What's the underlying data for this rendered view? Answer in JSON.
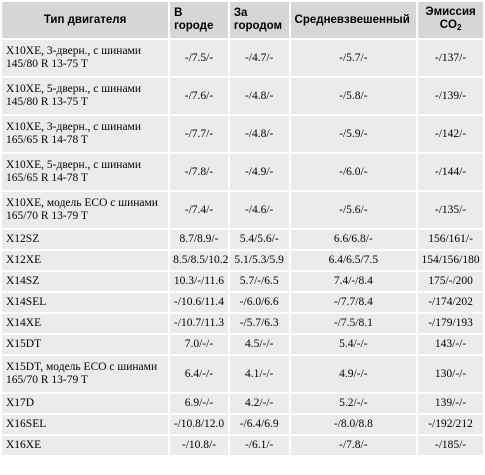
{
  "header": {
    "engine": "Тип двигателя",
    "city": "В городе",
    "highway": "За городом",
    "average": "Средневзвешенный",
    "emission": "Эмиссия CO",
    "emission_sub": "2"
  },
  "rows": [
    {
      "engine": "X10XE, 3-дверн., с шинами 145/80 R 13-75 T",
      "city": "-/7.5/-",
      "highway": "-/4.7/-",
      "average": "-/5.7/-",
      "emission": "-/137/-"
    },
    {
      "engine": "X10XE, 5-дверн., с шинами 145/80 R 13-75 T",
      "city": "-/7.6/-",
      "highway": "-/4.8/-",
      "average": "-/5.8/-",
      "emission": "-/139/-"
    },
    {
      "engine": "X10XE, 3-дверн., с шинами 165/65 R 14-78 T",
      "city": "-/7.7/-",
      "highway": "-/4.8/-",
      "average": "-/5.9/-",
      "emission": "-/142/-"
    },
    {
      "engine": "X10XE, 5-дверн., с шинами 165/65 R 14-78 T",
      "city": "-/7.8/-",
      "highway": "-/4.9/-",
      "average": "-/6.0/-",
      "emission": "-/144/-"
    },
    {
      "engine": "X10XE, модель ECO с шинами 165/70 R 13-79 T",
      "city": "-/7.4/-",
      "highway": "-/4.6/-",
      "average": "-/5.6/-",
      "emission": "-/135/-"
    },
    {
      "engine": "X12SZ",
      "city": "8.7/8.9/-",
      "highway": "5.4/5.6/-",
      "average": "6.6/6.8/-",
      "emission": "156/161/-"
    },
    {
      "engine": "X12XE",
      "city": "8.5/8.5/10.2",
      "highway": "5.1/5.3/5.9",
      "average": "6.4/6.5/7.5",
      "emission": "154/156/180"
    },
    {
      "engine": "X14SZ",
      "city": "10.3/-/11.6",
      "highway": "5.7/-/6.5",
      "average": "7.4/-/8.4",
      "emission": "175/-/200"
    },
    {
      "engine": "X14SEL",
      "city": "-/10.6/11.4",
      "highway": "-/6.0/6.6",
      "average": "-/7.7/8.4",
      "emission": "-/174/202"
    },
    {
      "engine": "X14XE",
      "city": "-/10.7/11.3",
      "highway": "-/5.7/6.3",
      "average": "-/7.5/8.1",
      "emission": "-/179/193"
    },
    {
      "engine": "X15DT",
      "city": "7.0/-/-",
      "highway": "4.5/-/-",
      "average": "5.4/-/-",
      "emission": "143/-/-"
    },
    {
      "engine": "X15DT, модель ECO с шинами 165/70 R 13-79 T",
      "city": "6.4/-/-",
      "highway": "4.1/-/-",
      "average": "4.9/-/-",
      "emission": "130/-/-"
    },
    {
      "engine": "X17D",
      "city": "6.9/-/-",
      "highway": "4.2/-/-",
      "average": "5.2/-/-",
      "emission": "139/-/-"
    },
    {
      "engine": "X16SEL",
      "city": "-/10.8/12.0",
      "highway": "-/6.4/6.9",
      "average": "-/8.0/8.8",
      "emission": "-/192/212"
    },
    {
      "engine": "X16XE",
      "city": "-/10.8/-",
      "highway": "-/6.1/-",
      "average": "-/7.8/-",
      "emission": "-/185/-"
    }
  ]
}
